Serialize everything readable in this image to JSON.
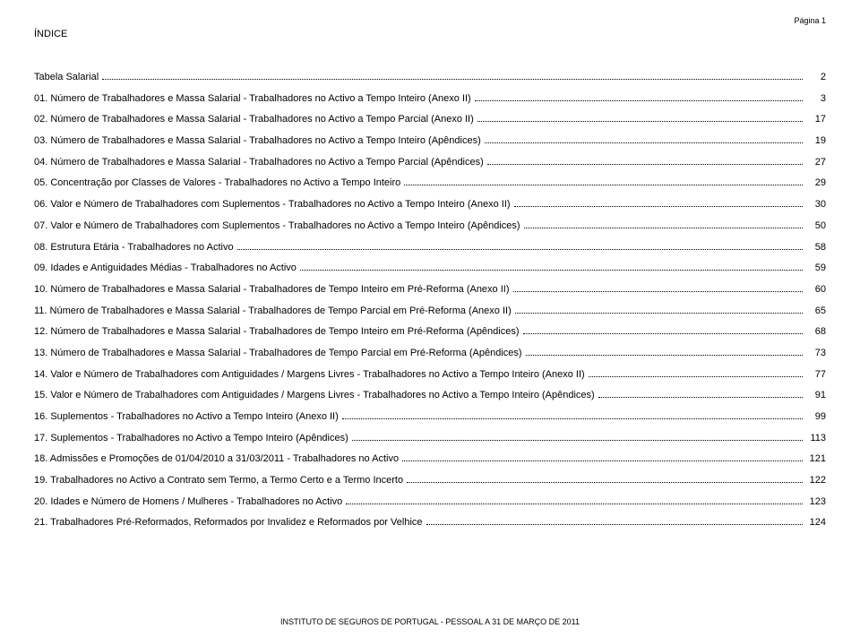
{
  "page_label": "Página 1",
  "title": "ÍNDICE",
  "footer": "INSTITUTO DE SEGUROS DE PORTUGAL - PESSOAL A 31 DE MARÇO DE 2011",
  "toc": [
    {
      "label": "Tabela Salarial",
      "page": "2"
    },
    {
      "label": "01. Número de Trabalhadores e Massa Salarial - Trabalhadores no Activo a Tempo Inteiro (Anexo II)",
      "page": "3"
    },
    {
      "label": "02. Número de Trabalhadores e Massa Salarial - Trabalhadores no Activo a Tempo Parcial (Anexo II)",
      "page": "17"
    },
    {
      "label": "03. Número de Trabalhadores e Massa Salarial - Trabalhadores no Activo a Tempo Inteiro (Apêndices)",
      "page": "19"
    },
    {
      "label": "04. Número de Trabalhadores e Massa Salarial - Trabalhadores no Activo a Tempo Parcial (Apêndices)",
      "page": "27"
    },
    {
      "label": "05. Concentração por Classes de Valores - Trabalhadores no Activo a Tempo Inteiro",
      "page": "29"
    },
    {
      "label": "06. Valor e Número de Trabalhadores com Suplementos - Trabalhadores no Activo a Tempo Inteiro (Anexo II)",
      "page": "30"
    },
    {
      "label": "07. Valor e Número de Trabalhadores com Suplementos - Trabalhadores no Activo a Tempo Inteiro (Apêndices)",
      "page": "50"
    },
    {
      "label": "08. Estrutura Etária - Trabalhadores no Activo",
      "page": "58"
    },
    {
      "label": "09. Idades e Antiguidades Médias - Trabalhadores no Activo",
      "page": "59"
    },
    {
      "label": "10. Número de Trabalhadores e Massa Salarial - Trabalhadores de Tempo Inteiro em Pré-Reforma (Anexo II)",
      "page": "60"
    },
    {
      "label": "11. Número de Trabalhadores e Massa Salarial - Trabalhadores de Tempo Parcial em Pré-Reforma (Anexo II)",
      "page": "65"
    },
    {
      "label": "12. Número de Trabalhadores e Massa Salarial - Trabalhadores de Tempo Inteiro em Pré-Reforma (Apêndices)",
      "page": "68"
    },
    {
      "label": "13. Número de Trabalhadores e Massa Salarial - Trabalhadores de Tempo Parcial em Pré-Reforma (Apêndices)",
      "page": "73"
    },
    {
      "label": "14. Valor e Número de Trabalhadores com Antiguidades / Margens Livres - Trabalhadores no Activo a Tempo Inteiro (Anexo II)",
      "page": "77"
    },
    {
      "label": "15. Valor e Número de Trabalhadores com Antiguidades / Margens Livres - Trabalhadores no Activo a Tempo Inteiro (Apêndices)",
      "page": "91"
    },
    {
      "label": "16. Suplementos - Trabalhadores no Activo a Tempo Inteiro (Anexo II)",
      "page": "99"
    },
    {
      "label": "17. Suplementos - Trabalhadores no Activo a Tempo Inteiro (Apêndices)",
      "page": "113"
    },
    {
      "label": "18. Admissões e Promoções de 01/04/2010 a 31/03/2011 - Trabalhadores no Activo",
      "page": "121"
    },
    {
      "label": "19. Trabalhadores no Activo a Contrato sem Termo, a Termo Certo e a Termo Incerto",
      "page": "122"
    },
    {
      "label": "20. Idades e Número de Homens / Mulheres - Trabalhadores no Activo",
      "page": "123"
    },
    {
      "label": "21. Trabalhadores Pré-Reformados, Reformados por Invalidez e Reformados por Velhice",
      "page": "124"
    }
  ],
  "style": {
    "font_family": "Arial",
    "body_fontsize_pt": 8.5,
    "title_fontsize_pt": 8.5,
    "text_color": "#000000",
    "background_color": "#ffffff",
    "leader_style": "dotted"
  }
}
